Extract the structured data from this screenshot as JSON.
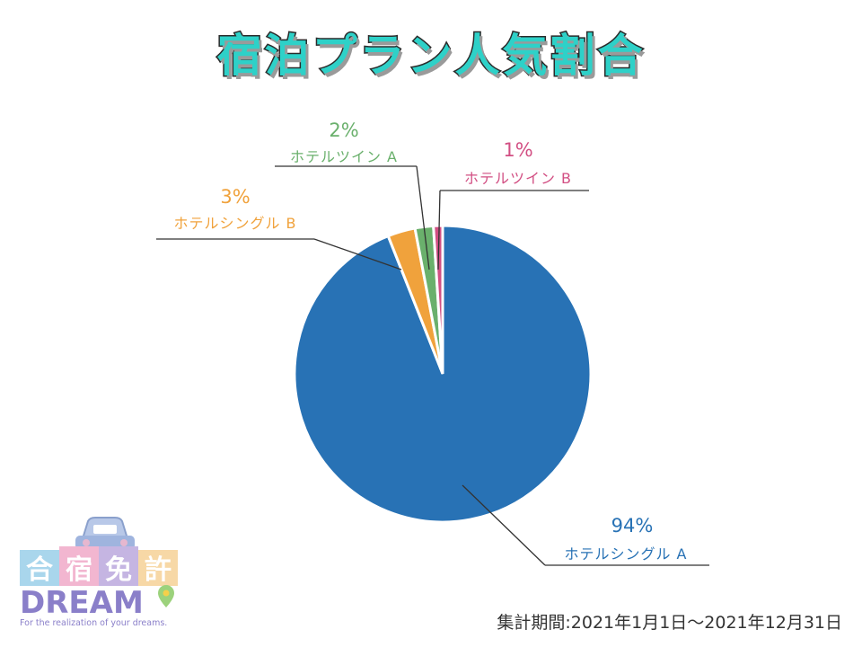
{
  "title": "宿泊プラン人気割合",
  "period": "集計期間:2021年1月1日～2021年12月31日",
  "logo": {
    "kanji": [
      "合",
      "宿",
      "免",
      "許"
    ],
    "wordmark": "DREAM",
    "tagline": "For the realization of your dreams."
  },
  "chart_data": {
    "type": "pie",
    "title": "宿泊プラン人気割合",
    "start_angle": "12 o'clock",
    "direction": "clockwise",
    "slices": [
      {
        "label": "ホテルシングル A",
        "value": 94,
        "display": "94%",
        "color": "#2872b5"
      },
      {
        "label": "ホテルシングル B",
        "value": 3,
        "display": "3%",
        "color": "#f0a23c"
      },
      {
        "label": "ホテルツイン A",
        "value": 2,
        "display": "2%",
        "color": "#6ab06c"
      },
      {
        "label": "ホテルツイン B",
        "value": 1,
        "display": "1%",
        "color": "#d24f83"
      }
    ]
  }
}
